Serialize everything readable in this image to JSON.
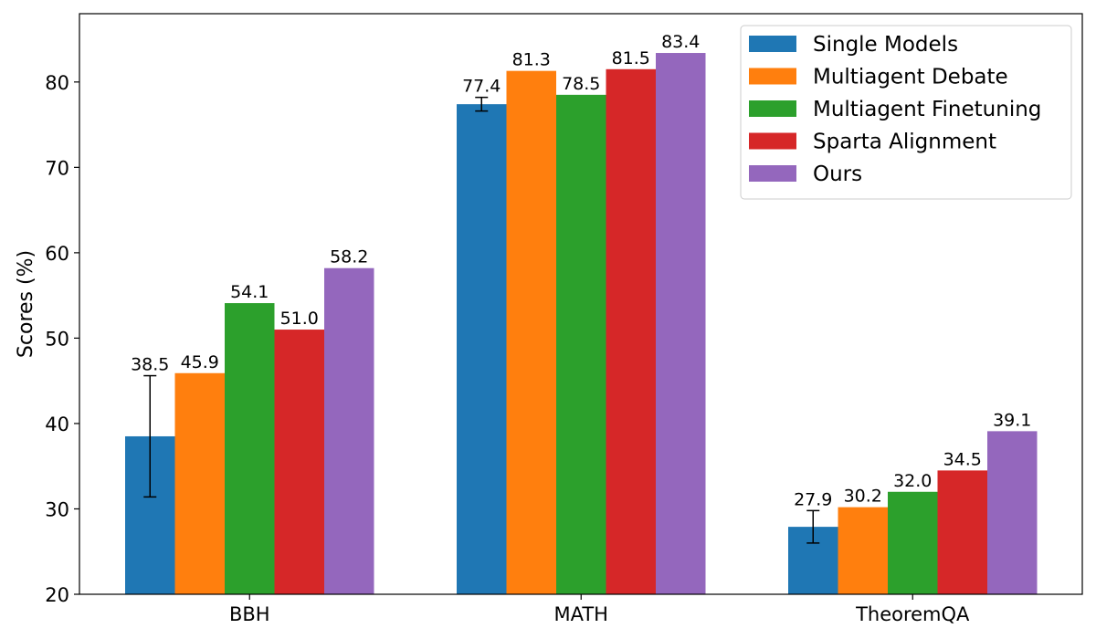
{
  "chart_data": {
    "type": "bar",
    "title": "",
    "xlabel": "",
    "ylabel": "Scores (%)",
    "ylim": [
      20,
      88
    ],
    "yticks": [
      20,
      30,
      40,
      50,
      60,
      70,
      80
    ],
    "categories": [
      "BBH",
      "MATH",
      "TheoremQA"
    ],
    "series": [
      {
        "name": "Single Models",
        "color": "#1f77b4",
        "values": [
          38.5,
          77.4,
          27.9
        ],
        "errors": [
          7.1,
          0.8,
          1.9
        ]
      },
      {
        "name": "Multiagent Debate",
        "color": "#ff7f0e",
        "values": [
          45.9,
          81.3,
          30.2
        ]
      },
      {
        "name": "Multiagent Finetuning",
        "color": "#2ca02c",
        "values": [
          54.1,
          78.5,
          32.0
        ]
      },
      {
        "name": "Sparta Alignment",
        "color": "#d62728",
        "values": [
          51.0,
          81.5,
          34.5
        ]
      },
      {
        "name": "Ours",
        "color": "#9467bd",
        "values": [
          58.2,
          83.4,
          39.1
        ]
      }
    ],
    "legend_position": "upper-right"
  }
}
